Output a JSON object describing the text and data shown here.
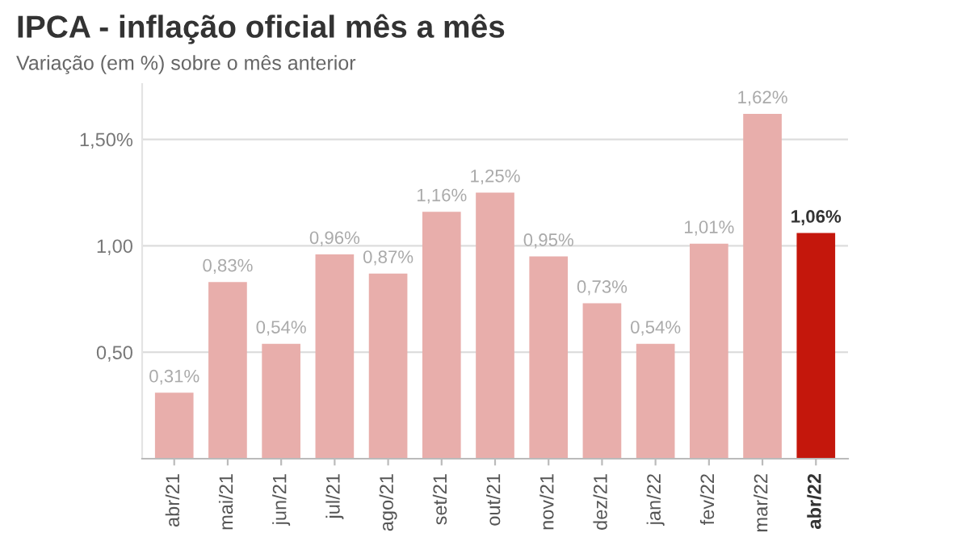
{
  "chart_data": {
    "type": "bar",
    "title": "IPCA - inflação oficial mês a mês",
    "subtitle": "Variação (em %) sobre o mês anterior",
    "categories": [
      "abr/21",
      "mai/21",
      "jun/21",
      "jul/21",
      "ago/21",
      "set/21",
      "out/21",
      "nov/21",
      "dez/21",
      "jan/22",
      "fev/22",
      "mar/22",
      "abr/22"
    ],
    "values": [
      0.31,
      0.83,
      0.54,
      0.96,
      0.87,
      1.16,
      1.25,
      0.95,
      0.73,
      0.54,
      1.01,
      1.62,
      1.06
    ],
    "colors": [
      "#e8aeab",
      "#e8aeab",
      "#e8aeab",
      "#e8aeab",
      "#e8aeab",
      "#e8aeab",
      "#e8aeab",
      "#e8aeab",
      "#e8aeab",
      "#e8aeab",
      "#e8aeab",
      "#e8aeab",
      "#c4170c"
    ],
    "value_labels": [
      "0,31%",
      "0,83%",
      "0,54%",
      "0,96%",
      "0,87%",
      "1,16%",
      "1,25%",
      "0,95%",
      "0,73%",
      "0,54%",
      "1,01%",
      "1,62%",
      "1,06%"
    ],
    "ylim": [
      0,
      1.76
    ],
    "yticks": [
      {
        "value": 0.5,
        "label": "0,50"
      },
      {
        "value": 1.0,
        "label": "1,00"
      },
      {
        "value": 1.5,
        "label": "1,50%"
      }
    ],
    "grid": "y",
    "legend": false
  }
}
